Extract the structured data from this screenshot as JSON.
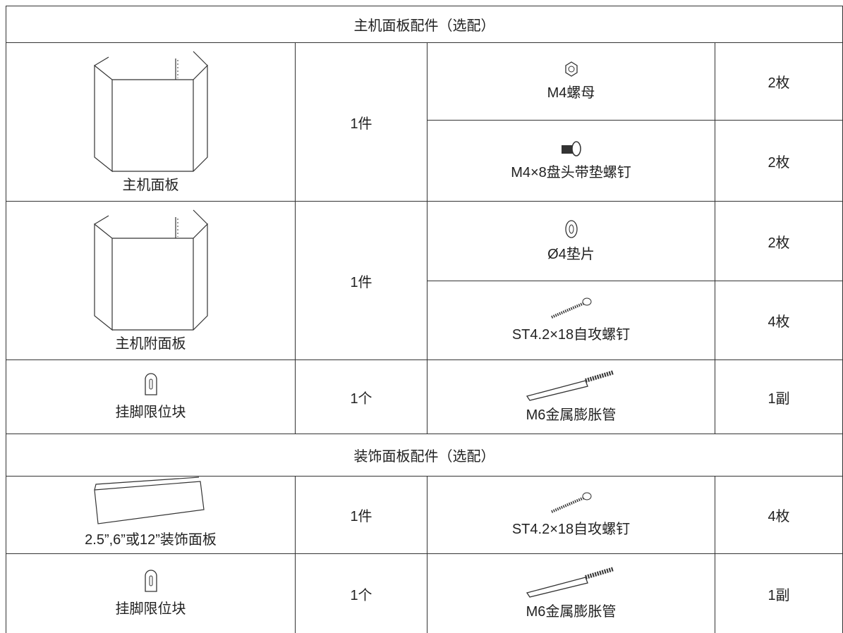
{
  "sections": [
    {
      "title": "主机面板配件（选配）",
      "groups": [
        {
          "part": "主机面板",
          "part_qty": "1件",
          "fittings": [
            {
              "name": "M4螺母",
              "qty": "2枚"
            },
            {
              "name": "M4×8盘头带垫螺钉",
              "qty": "2枚"
            }
          ]
        },
        {
          "part": "主机附面板",
          "part_qty": "1件",
          "fittings": [
            {
              "name": "Ø4垫片",
              "qty": "2枚"
            },
            {
              "name": "ST4.2×18自攻螺钉",
              "qty": "4枚"
            }
          ]
        },
        {
          "part": "挂脚限位块",
          "part_qty": "1个",
          "fittings": [
            {
              "name": "M6金属膨胀管",
              "qty": "1副"
            }
          ]
        }
      ]
    },
    {
      "title": "装饰面板配件（选配）",
      "groups": [
        {
          "part": "2.5”,6”或12”装饰面板",
          "part_qty": "1件",
          "fittings": [
            {
              "name": "ST4.2×18自攻螺钉",
              "qty": "4枚"
            }
          ]
        },
        {
          "part": "挂脚限位块",
          "part_qty": "1个",
          "fittings": [
            {
              "name": "M6金属膨胀管",
              "qty": "1副"
            }
          ]
        }
      ]
    }
  ]
}
